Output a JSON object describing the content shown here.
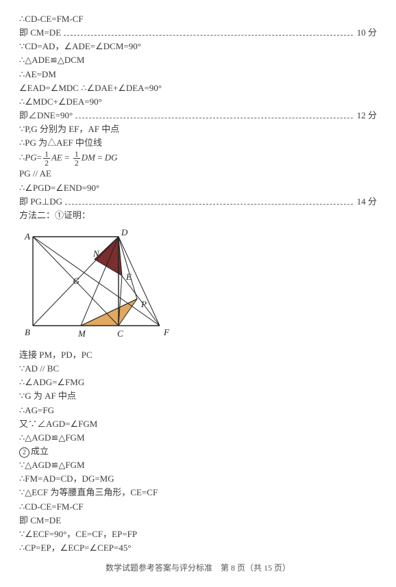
{
  "lines": [
    {
      "text": "∴CD-CE=FM-CF"
    },
    {
      "text": "即 CM=DE",
      "score": "10 分"
    },
    {
      "text": "∵CD=AD，∠ADE=∠DCM=90°"
    },
    {
      "text": "∴△ADE≌△DCM"
    },
    {
      "text": "∴AE=DM"
    },
    {
      "text": "∠EAD=∠MDC ∴∠DAE+∠DEA=90°"
    },
    {
      "text": "∴∠MDC+∠DEA=90°"
    },
    {
      "text": "即∠DNE=90°",
      "score": "12 分"
    },
    {
      "text": "∵P,G 分别为 EF，AF 中点"
    },
    {
      "text": "∴PG 为△AEF 中位线"
    },
    {
      "frac": true
    },
    {
      "text": "PG // AE"
    },
    {
      "text": "∴∠PGD=∠END=90°"
    },
    {
      "text": "即 PG⊥DG",
      "score": "14 分"
    }
  ],
  "method2": "方法二：①证明：",
  "labels": {
    "A": "A",
    "B": "B",
    "C": "C",
    "D": "D",
    "E": "E",
    "F": "F",
    "G": "G",
    "M": "M",
    "N": "N",
    "P": "P"
  },
  "colors": {
    "fill_dark": "#7a2e2e",
    "fill_light": "#e0a860",
    "line": "#222222"
  },
  "lines2": [
    {
      "text": "连接 PM，PD，PC"
    },
    {
      "text": "∵AD // BC"
    },
    {
      "text": "∴∠ADG=∠FMG"
    },
    {
      "text": "∵G 为 AF 中点"
    },
    {
      "text": "∴AG=FG"
    },
    {
      "text": "又∵∠AGD=∠FGM"
    },
    {
      "text": "∴△AGD≌△FGM"
    },
    {
      "circ": "2",
      "text": "成立"
    },
    {
      "text": "∵△AGD≌△FGM"
    },
    {
      "text": "∴FM=AD=CD，DG=MG"
    },
    {
      "text": "∵△ECF 为等腰直角三角形，CE=CF"
    },
    {
      "text": "∴CD-CE=FM-CF"
    },
    {
      "text": "即 CM=DE"
    },
    {
      "text": "∵∠ECF=90°，CE=CF，EP=FP"
    },
    {
      "text": "∴CP=EP，∠ECP=∠CEP=45°"
    }
  ],
  "footer": "数学试题参考答案与评分标准　第 8 页（共 15 页）"
}
